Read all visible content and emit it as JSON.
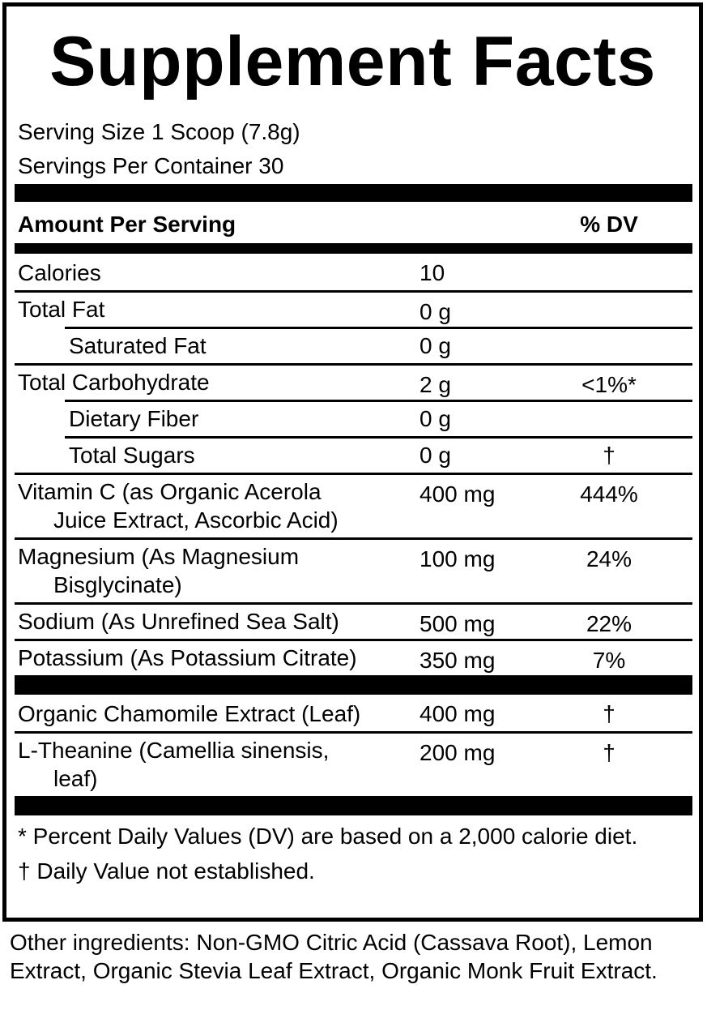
{
  "title": "Supplement Facts",
  "serving_size": "Serving Size 1 Scoop (7.8g)",
  "servings_per_container": "Servings Per Container 30",
  "header": {
    "amount": "Amount Per Serving",
    "dv": "% DV"
  },
  "sections": [
    {
      "rows": [
        {
          "name": [
            "Calories"
          ],
          "amount": "10"
        },
        {
          "name": [
            "Total Fat"
          ],
          "amount": "0 g"
        },
        {
          "name": [
            "Saturated Fat"
          ],
          "amount": "0 g",
          "indent": true
        },
        {
          "name": [
            "Total Carbohydrate"
          ],
          "amount": "2 g",
          "dv": "<1%*"
        },
        {
          "name": [
            "Dietary Fiber"
          ],
          "amount": "0 g",
          "indent": true
        },
        {
          "name": [
            "Total Sugars"
          ],
          "amount": "0 g",
          "dv": "†",
          "indent": true
        },
        {
          "name": [
            "Vitamin C (as Organic Acerola",
            "Juice Extract, Ascorbic Acid)"
          ],
          "amount": "400 mg",
          "dv": "444%"
        },
        {
          "name": [
            "Magnesium (As Magnesium",
            "Bisglycinate)"
          ],
          "amount": "100 mg",
          "dv": "24%"
        },
        {
          "name": [
            "Sodium (As Unrefined Sea Salt)"
          ],
          "amount": "500 mg",
          "dv": "22%"
        },
        {
          "name": [
            "Potassium (As Potassium Citrate)"
          ],
          "amount": "350 mg",
          "dv": "7%"
        }
      ]
    },
    {
      "rows": [
        {
          "name": [
            "Organic Chamomile Extract (Leaf)"
          ],
          "amount": "400 mg",
          "dv": "†"
        },
        {
          "name": [
            "L-Theanine (Camellia sinensis,",
            "leaf)"
          ],
          "amount": "200 mg",
          "dv": "†"
        }
      ]
    }
  ],
  "footnotes": [
    "* Percent Daily Values (DV) are based on a 2,000 calorie diet.",
    "† Daily Value not established."
  ],
  "other_ingredients": "Other ingredients: Non-GMO Citric Acid (Cassava Root), Lemon Extract, Organic Stevia Leaf Extract, Organic Monk Fruit Extract."
}
